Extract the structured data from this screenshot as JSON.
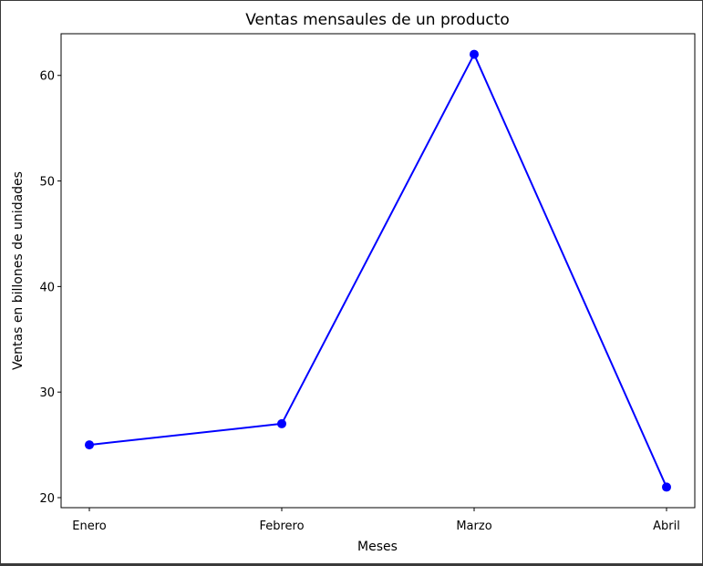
{
  "chart_data": {
    "type": "line",
    "title": "Ventas mensaules de un producto",
    "xlabel": "Meses",
    "ylabel": "Ventas en billones de unidades",
    "categories": [
      "Enero",
      "Febrero",
      "Marzo",
      "Abril"
    ],
    "series": [
      {
        "values": [
          25,
          27,
          62,
          21
        ],
        "color": "#0000ff",
        "marker": "circle"
      }
    ],
    "yticks": [
      20,
      30,
      40,
      50,
      60
    ],
    "ylim": [
      19.05,
      63.95
    ],
    "grid": false,
    "legend": "none"
  }
}
